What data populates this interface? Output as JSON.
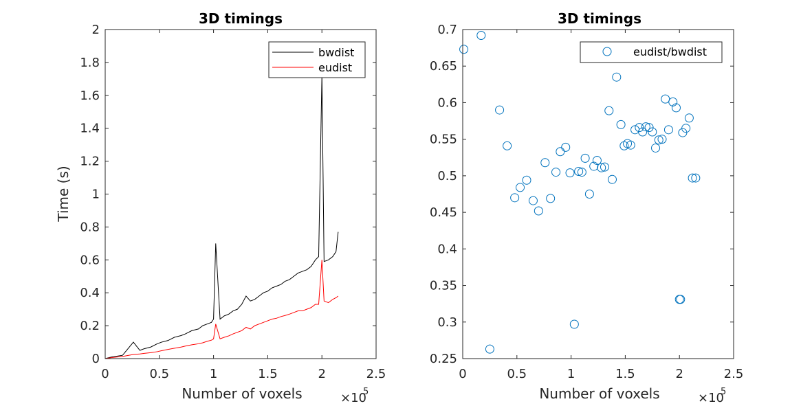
{
  "chart_data": [
    {
      "type": "line",
      "title": "3D timings",
      "xlabel": "Number of voxels",
      "ylabel": "Time (s)",
      "x_exponent_label": "×10",
      "x_exponent_power": "5",
      "xlim": [
        0,
        2.5
      ],
      "ylim": [
        0,
        2
      ],
      "x_scale_note": "x values in units of 10^5 voxels",
      "xticks": [
        "0",
        "0.5",
        "1",
        "1.5",
        "2",
        "2.5"
      ],
      "yticks": [
        "0",
        "0.2",
        "0.4",
        "0.6",
        "0.8",
        "1",
        "1.2",
        "1.4",
        "1.6",
        "1.8",
        "2"
      ],
      "legend_position": "top-right",
      "grid": false,
      "x": [
        0.0,
        0.06,
        0.16,
        0.26,
        0.32,
        0.36,
        0.42,
        0.48,
        0.52,
        0.58,
        0.64,
        0.7,
        0.74,
        0.8,
        0.86,
        0.9,
        0.94,
        0.98,
        1.0,
        1.02,
        1.06,
        1.1,
        1.14,
        1.18,
        1.22,
        1.26,
        1.3,
        1.34,
        1.38,
        1.42,
        1.46,
        1.5,
        1.54,
        1.58,
        1.62,
        1.66,
        1.7,
        1.74,
        1.78,
        1.82,
        1.86,
        1.9,
        1.94,
        1.97,
        2.0,
        2.02,
        2.06,
        2.1,
        2.13,
        2.15
      ],
      "series": [
        {
          "name": "bwdist",
          "color": "#000000",
          "values": [
            0.0,
            0.01,
            0.02,
            0.1,
            0.05,
            0.06,
            0.07,
            0.09,
            0.1,
            0.11,
            0.13,
            0.14,
            0.15,
            0.17,
            0.18,
            0.2,
            0.21,
            0.22,
            0.24,
            0.7,
            0.24,
            0.26,
            0.27,
            0.29,
            0.3,
            0.33,
            0.38,
            0.35,
            0.36,
            0.38,
            0.4,
            0.41,
            0.43,
            0.44,
            0.45,
            0.47,
            0.48,
            0.5,
            0.52,
            0.53,
            0.54,
            0.56,
            0.6,
            0.62,
            1.72,
            0.59,
            0.6,
            0.62,
            0.65,
            0.77
          ]
        },
        {
          "name": "eudist",
          "color": "#ff0000",
          "values": [
            0.0,
            0.006,
            0.013,
            0.025,
            0.028,
            0.032,
            0.036,
            0.042,
            0.048,
            0.056,
            0.063,
            0.07,
            0.076,
            0.084,
            0.09,
            0.096,
            0.105,
            0.112,
            0.12,
            0.21,
            0.12,
            0.13,
            0.138,
            0.15,
            0.16,
            0.17,
            0.19,
            0.18,
            0.2,
            0.21,
            0.22,
            0.23,
            0.24,
            0.245,
            0.255,
            0.262,
            0.27,
            0.28,
            0.29,
            0.29,
            0.3,
            0.31,
            0.33,
            0.33,
            0.6,
            0.35,
            0.34,
            0.36,
            0.37,
            0.38
          ]
        }
      ]
    },
    {
      "type": "scatter",
      "title": "3D timings",
      "xlabel": "Number of voxels",
      "ylabel": "",
      "x_exponent_label": "×10",
      "x_exponent_power": "5",
      "xlim": [
        0,
        2.5
      ],
      "ylim": [
        0.25,
        0.7
      ],
      "x_scale_note": "x values in units of 10^5 voxels",
      "xticks": [
        "0",
        "0.5",
        "1",
        "1.5",
        "2",
        "2.5"
      ],
      "yticks": [
        "0.25",
        "0.3",
        "0.35",
        "0.4",
        "0.45",
        "0.5",
        "0.55",
        "0.6",
        "0.65",
        "0.7"
      ],
      "legend_position": "top-right",
      "grid": false,
      "series": [
        {
          "name": "eudist/bwdist",
          "color": "#0072bd",
          "x": [
            0.01,
            0.17,
            0.25,
            0.34,
            0.41,
            0.48,
            0.53,
            0.59,
            0.65,
            0.7,
            0.76,
            0.81,
            0.86,
            0.9,
            0.95,
            0.99,
            1.03,
            1.07,
            1.1,
            1.13,
            1.17,
            1.21,
            1.24,
            1.28,
            1.31,
            1.35,
            1.38,
            1.42,
            1.46,
            1.49,
            1.52,
            1.55,
            1.59,
            1.63,
            1.66,
            1.69,
            1.72,
            1.75,
            1.78,
            1.81,
            1.84,
            1.87,
            1.9,
            1.94,
            1.97,
            2.0,
            2.03,
            2.06,
            2.09,
            2.12,
            2.15,
            2.01
          ],
          "y": [
            0.673,
            0.692,
            0.263,
            0.59,
            0.541,
            0.47,
            0.484,
            0.494,
            0.466,
            0.452,
            0.518,
            0.469,
            0.505,
            0.533,
            0.539,
            0.504,
            0.297,
            0.506,
            0.505,
            0.524,
            0.475,
            0.513,
            0.521,
            0.511,
            0.512,
            0.589,
            0.495,
            0.635,
            0.57,
            0.541,
            0.544,
            0.542,
            0.563,
            0.566,
            0.56,
            0.567,
            0.566,
            0.56,
            0.538,
            0.549,
            0.55,
            0.605,
            0.563,
            0.601,
            0.593,
            0.331,
            0.559,
            0.565,
            0.579,
            0.497,
            0.497,
            0.331
          ]
        }
      ]
    }
  ]
}
